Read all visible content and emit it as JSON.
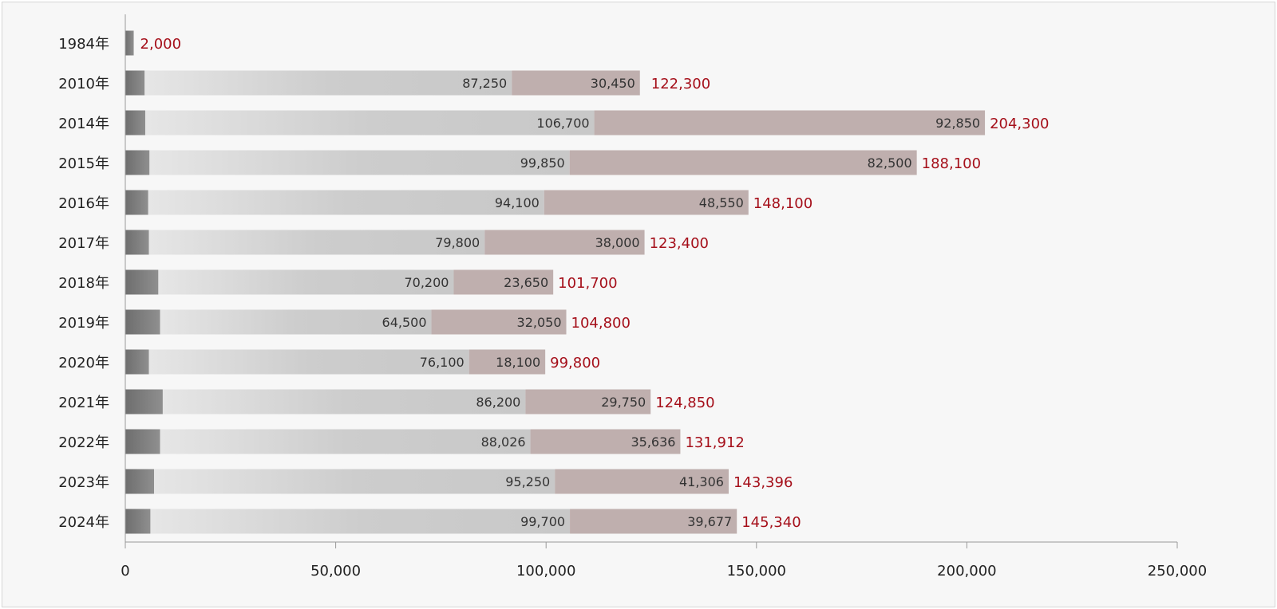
{
  "chart_data": {
    "type": "bar",
    "orientation": "horizontal",
    "stacked": true,
    "categories": [
      "1984年",
      "2010年",
      "2014年",
      "2015年",
      "2016年",
      "2017年",
      "2018年",
      "2019年",
      "2020年",
      "2021年",
      "2022年",
      "2023年",
      "2024年"
    ],
    "series": [
      {
        "values": [
          2000,
          4600,
          4750,
          5750,
          5450,
          5600,
          7850,
          8250,
          5600,
          8900,
          8250,
          6840,
          5963
        ],
        "color": "#7a7a7a"
      },
      {
        "values": [
          0,
          87250,
          106700,
          99850,
          94100,
          79800,
          70200,
          64500,
          76100,
          86200,
          88026,
          95250,
          99700
        ],
        "color": "#cbcbcb"
      },
      {
        "values": [
          0,
          30450,
          92850,
          82500,
          48550,
          38000,
          23650,
          32050,
          18100,
          29750,
          35636,
          41306,
          39677
        ],
        "color": "#bfafae"
      }
    ],
    "series_labels": [
      [
        "",
        "4,600",
        "4,750",
        "5,750",
        "5,450",
        "5,600",
        "7,850",
        "8,250",
        "5,600",
        "8,900",
        "8,250",
        "6,840",
        "5,963"
      ],
      [
        "",
        "87,250",
        "106,700",
        "99,850",
        "94,100",
        "79,800",
        "70,200",
        "64,500",
        "76,100",
        "86,200",
        "88,026",
        "95,250",
        "99,700"
      ],
      [
        "",
        "30,450",
        "92,850",
        "82,500",
        "48,550",
        "38,000",
        "23,650",
        "32,050",
        "18,100",
        "29,750",
        "35,636",
        "41,306",
        "39,677"
      ]
    ],
    "totals": [
      "2,000",
      "122,300",
      "204,300",
      "188,100",
      "148,100",
      "123,400",
      "101,700",
      "104,800",
      "99,800",
      "124,850",
      "131,912",
      "143,396",
      "145,340"
    ],
    "total_color": "#a50f1a",
    "xlim": [
      0,
      250000
    ],
    "xticks": [
      0,
      50000,
      100000,
      150000,
      200000,
      250000
    ],
    "xtick_labels": [
      "0",
      "50,000",
      "100,000",
      "150,000",
      "200,000",
      "250,000"
    ],
    "grid": false,
    "legend": "none"
  }
}
